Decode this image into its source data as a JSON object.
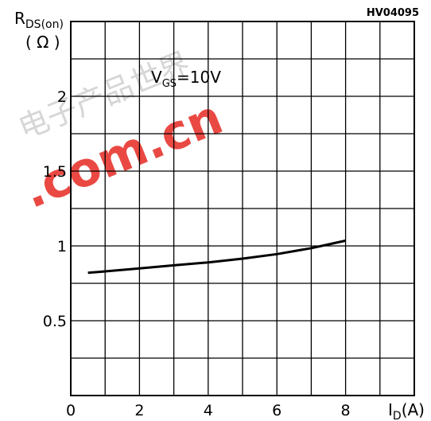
{
  "figure_code": "HV04095",
  "condition": {
    "main": "V",
    "sub": "GS",
    "rest": "=10V"
  },
  "watermark": {
    "text": ".com.cn",
    "cjk": "电子产品世界"
  },
  "chart_data": {
    "type": "line",
    "ylabel": {
      "main": "R",
      "sub": "DS(on)",
      "unit": "( Ω )"
    },
    "xlabel": {
      "main": "I",
      "sub": "D",
      "unit": "(A)"
    },
    "xlim": [
      0,
      10
    ],
    "ylim": [
      0,
      2.5
    ],
    "xticks": [
      0,
      2,
      4,
      6,
      8
    ],
    "xtick_labels": [
      "0",
      "2",
      "4",
      "6",
      "8"
    ],
    "yticks": [
      0.5,
      1,
      1.5,
      2
    ],
    "ytick_labels": [
      "0.5",
      "1",
      "1.5",
      "2"
    ],
    "grid": true,
    "series": [
      {
        "x": [
          0.5,
          1,
          2,
          3,
          4,
          5,
          6,
          7,
          7.5,
          8
        ],
        "y": [
          0.82,
          0.83,
          0.85,
          0.87,
          0.89,
          0.915,
          0.945,
          0.985,
          1.01,
          1.035
        ]
      }
    ]
  }
}
